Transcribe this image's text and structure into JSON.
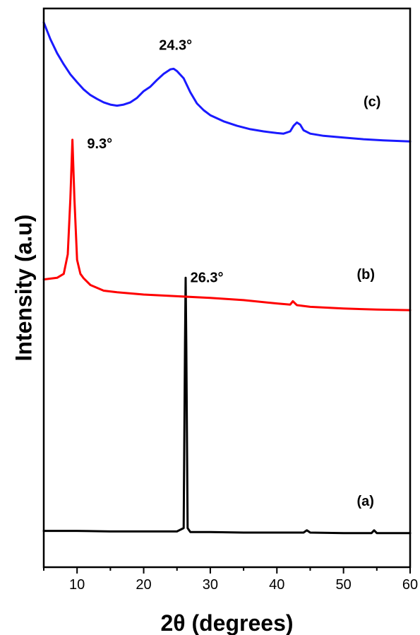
{
  "chart_data": {
    "type": "line",
    "xlabel": "2θ (degrees)",
    "ylabel": "Intensity (a.u)",
    "xlim": [
      5,
      60
    ],
    "ylim": [
      0,
      100
    ],
    "xticks": [
      10,
      20,
      30,
      40,
      50,
      60
    ],
    "xtick_labels": [
      "10",
      "20",
      "30",
      "40",
      "50",
      "60"
    ],
    "grid": false,
    "series": [
      {
        "name": "(a)",
        "color": "#000000",
        "x": [
          5,
          10,
          15,
          20,
          25,
          26.0,
          26.2,
          26.3,
          26.4,
          26.6,
          27.0,
          30,
          35,
          40,
          44.0,
          44.5,
          45.0,
          50,
          54.2,
          54.6,
          55.0,
          60
        ],
        "y": [
          6.5,
          6.5,
          6.4,
          6.4,
          6.4,
          7.0,
          40.0,
          51.8,
          40.0,
          7.0,
          6.3,
          6.3,
          6.2,
          6.2,
          6.2,
          6.6,
          6.2,
          6.1,
          6.1,
          6.6,
          6.1,
          6.1
        ]
      },
      {
        "name": "(b)",
        "color": "#ff0000",
        "x": [
          5,
          7,
          8.0,
          8.6,
          9.0,
          9.3,
          9.6,
          10.0,
          10.5,
          11.0,
          12,
          14,
          16,
          18,
          20,
          25,
          30,
          35,
          40,
          42.0,
          42.4,
          43.0,
          45,
          50,
          55,
          60
        ],
        "y": [
          51.5,
          51.8,
          52.5,
          56.0,
          66.0,
          76.5,
          66.0,
          55.0,
          52.5,
          51.7,
          50.5,
          49.5,
          49.2,
          49.0,
          48.8,
          48.5,
          48.2,
          47.8,
          47.2,
          47.0,
          47.6,
          46.9,
          46.6,
          46.3,
          46.1,
          46.0
        ]
      },
      {
        "name": "(c)",
        "color": "#1a1aff",
        "x": [
          5,
          6,
          7,
          8,
          9,
          10,
          11,
          12,
          13,
          14,
          15,
          16,
          17,
          18,
          19,
          20,
          21,
          22,
          23,
          24,
          24.5,
          25,
          26,
          27,
          28,
          29,
          30,
          32,
          34,
          36,
          38,
          40,
          41,
          42,
          42.5,
          43,
          43.5,
          44,
          45,
          47,
          50,
          53,
          56,
          60
        ],
        "y": [
          97.5,
          94.5,
          92.0,
          90.0,
          88.2,
          86.8,
          85.5,
          84.5,
          83.8,
          83.2,
          82.8,
          82.6,
          82.8,
          83.2,
          84.0,
          85.2,
          86.0,
          87.2,
          88.3,
          89.1,
          89.2,
          88.8,
          87.5,
          85.0,
          83.0,
          81.8,
          80.9,
          79.8,
          79.0,
          78.4,
          78.0,
          77.7,
          77.6,
          78.0,
          79.0,
          79.6,
          79.2,
          78.2,
          77.6,
          77.2,
          76.9,
          76.6,
          76.4,
          76.2
        ]
      }
    ],
    "annotations": [
      {
        "text": "26.3°",
        "x": 27.0,
        "y": 51.0
      },
      {
        "text": "9.3°",
        "x": 11.5,
        "y": 75.0
      },
      {
        "text": "24.3°",
        "x": 22.3,
        "y": 92.6
      },
      {
        "text": "(a)",
        "x": 52.0,
        "y": 11.0
      },
      {
        "text": "(b)",
        "x": 52.0,
        "y": 51.6
      },
      {
        "text": "(c)",
        "x": 53.0,
        "y": 82.5
      }
    ]
  }
}
